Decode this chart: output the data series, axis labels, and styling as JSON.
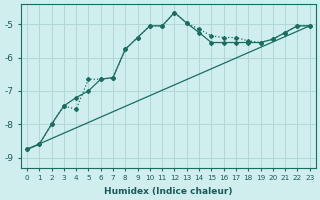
{
  "xlabel": "Humidex (Indice chaleur)",
  "background_color": "#d0eeee",
  "grid_color": "#b0d8d4",
  "line_color": "#1a6e60",
  "xlim": [
    -0.5,
    23.5
  ],
  "ylim": [
    -9.3,
    -4.4
  ],
  "yticks": [
    -9,
    -8,
    -7,
    -6,
    -5
  ],
  "xticks": [
    0,
    1,
    2,
    3,
    4,
    5,
    6,
    7,
    8,
    9,
    10,
    11,
    12,
    13,
    14,
    15,
    16,
    17,
    18,
    19,
    20,
    21,
    22,
    23
  ],
  "series1_x": [
    0,
    1,
    2,
    3,
    4,
    5,
    6,
    7,
    8,
    9,
    10,
    11,
    12,
    13,
    14,
    15,
    16,
    17,
    18,
    19,
    20,
    21,
    22,
    23
  ],
  "series1_y": [
    -8.75,
    -8.6,
    -8.0,
    -7.45,
    -7.55,
    -6.65,
    -6.65,
    -6.6,
    -5.75,
    -5.4,
    -5.05,
    -5.05,
    -4.65,
    -4.97,
    -5.15,
    -5.35,
    -5.4,
    -5.4,
    -5.5,
    -5.55,
    -5.45,
    -5.25,
    -5.05,
    -5.05
  ],
  "series2_x": [
    0,
    1,
    2,
    3,
    4,
    5,
    6,
    7,
    8,
    9,
    10,
    11,
    12,
    13,
    14,
    15,
    16,
    17,
    18,
    19,
    20,
    21,
    22,
    23
  ],
  "series2_y": [
    -8.75,
    -8.6,
    -8.0,
    -7.45,
    -7.2,
    -7.0,
    -6.65,
    -6.6,
    -5.75,
    -5.4,
    -5.05,
    -5.05,
    -4.65,
    -4.97,
    -5.25,
    -5.55,
    -5.55,
    -5.55,
    -5.55,
    -5.55,
    -5.45,
    -5.25,
    -5.05,
    -5.05
  ],
  "series3_x": [
    0,
    23
  ],
  "series3_y": [
    -8.75,
    -5.05
  ]
}
